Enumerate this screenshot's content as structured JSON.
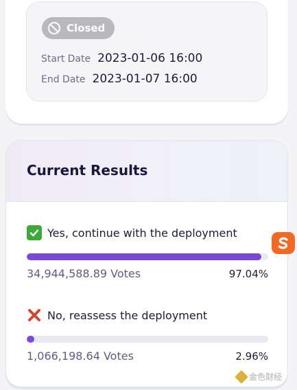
{
  "proposal": {
    "status": "Closed",
    "start_label": "Start Date",
    "start_value": "2023-01-06 16:00",
    "end_label": "End Date",
    "end_value": "2023-01-07 16:00"
  },
  "results": {
    "title": "Current Results",
    "options": [
      {
        "icon": "check-mark-icon",
        "label": "Yes, continue with the deployment",
        "votes": "34,944,588.89 Votes",
        "percent": "97.04%",
        "fraction": 0.9704
      },
      {
        "icon": "cross-mark-icon",
        "label": "No, reassess the deployment",
        "votes": "1,066,198.64 Votes",
        "percent": "2.96%",
        "fraction": 0.0296
      }
    ]
  },
  "watermark": {
    "text": "金色财经"
  },
  "colors": {
    "accent": "#7b47d6",
    "status_badge": "#b8b8bd",
    "title": "#1a1640",
    "muted": "#5e5c86"
  }
}
